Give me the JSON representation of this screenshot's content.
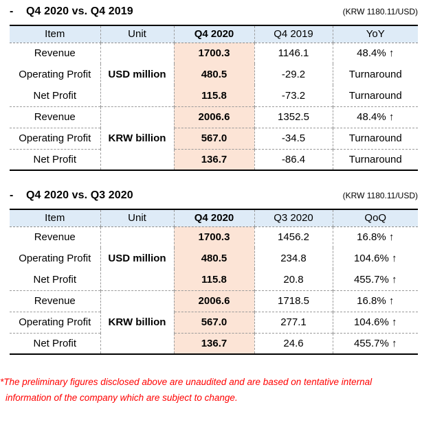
{
  "colors": {
    "header_bg": "#DEEBF7",
    "highlight_bg": "#FCE4D6",
    "solid_border": "#000000",
    "dashed_border": "#9a9a9a",
    "footnote_red": "#FF0000"
  },
  "tables": [
    {
      "title_bullet": "-",
      "title": "Q4 2020 vs. Q4 2019",
      "rate_note": "(KRW 1180.11/USD)",
      "columns": [
        "Item",
        "Unit",
        "Q4 2020",
        "Q4 2019",
        "YoY"
      ],
      "sections": [
        {
          "unit": "USD million",
          "rows": [
            {
              "item": "Revenue",
              "current": "1700.3",
              "prior": "1146.1",
              "change": "48.4% ↑"
            },
            {
              "item": "Operating Profit",
              "current": "480.5",
              "prior": "-29.2",
              "change": "Turnaround"
            },
            {
              "item": "Net Profit",
              "current": "115.8",
              "prior": "-73.2",
              "change": "Turnaround"
            }
          ]
        },
        {
          "unit": "KRW billion",
          "rows": [
            {
              "item": "Revenue",
              "current": "2006.6",
              "prior": "1352.5",
              "change": "48.4% ↑"
            },
            {
              "item": "Operating Profit",
              "current": "567.0",
              "prior": "-34.5",
              "change": "Turnaround"
            },
            {
              "item": "Net Profit",
              "current": "136.7",
              "prior": "-86.4",
              "change": "Turnaround"
            }
          ]
        }
      ]
    },
    {
      "title_bullet": "-",
      "title": "Q4 2020 vs. Q3 2020",
      "rate_note": "(KRW 1180.11/USD)",
      "columns": [
        "Item",
        "Unit",
        "Q4 2020",
        "Q3 2020",
        "QoQ"
      ],
      "sections": [
        {
          "unit": "USD million",
          "rows": [
            {
              "item": "Revenue",
              "current": "1700.3",
              "prior": "1456.2",
              "change": "16.8% ↑"
            },
            {
              "item": "Operating Profit",
              "current": "480.5",
              "prior": "234.8",
              "change": "104.6% ↑"
            },
            {
              "item": "Net Profit",
              "current": "115.8",
              "prior": "20.8",
              "change": "455.7% ↑"
            }
          ]
        },
        {
          "unit": "KRW billion",
          "rows": [
            {
              "item": "Revenue",
              "current": "2006.6",
              "prior": "1718.5",
              "change": "16.8% ↑"
            },
            {
              "item": "Operating Profit",
              "current": "567.0",
              "prior": "277.1",
              "change": "104.6% ↑"
            },
            {
              "item": "Net Profit",
              "current": "136.7",
              "prior": "24.6",
              "change": "455.7% ↑"
            }
          ]
        }
      ]
    }
  ],
  "footnote": {
    "line1": "*The preliminary figures disclosed above are unaudited and are based on tentative internal",
    "line2": "information of the company which are subject to change."
  }
}
